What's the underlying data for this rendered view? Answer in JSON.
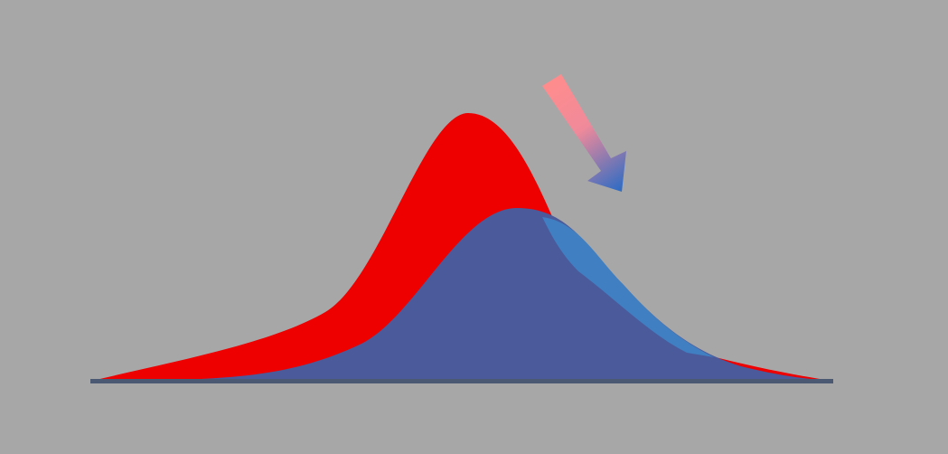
{
  "diagram": {
    "background_color": "#a8a7a8",
    "curves": [
      {
        "id": "red-distribution",
        "color": "#ee0000",
        "shape": "bell-curve",
        "relative_position": "left",
        "relative_height": "taller"
      },
      {
        "id": "blue-distribution",
        "color": "#4a5a9b",
        "overlap_color": "#3f7fc2",
        "shape": "bell-curve",
        "relative_position": "right",
        "relative_height": "shorter"
      }
    ],
    "baseline_color": "#4b5a72",
    "arrow": {
      "direction": "down-right",
      "gradient_start": "#ff8c8c",
      "gradient_end": "#2f6cc4",
      "meaning": "shift-from-red-to-blue"
    }
  }
}
